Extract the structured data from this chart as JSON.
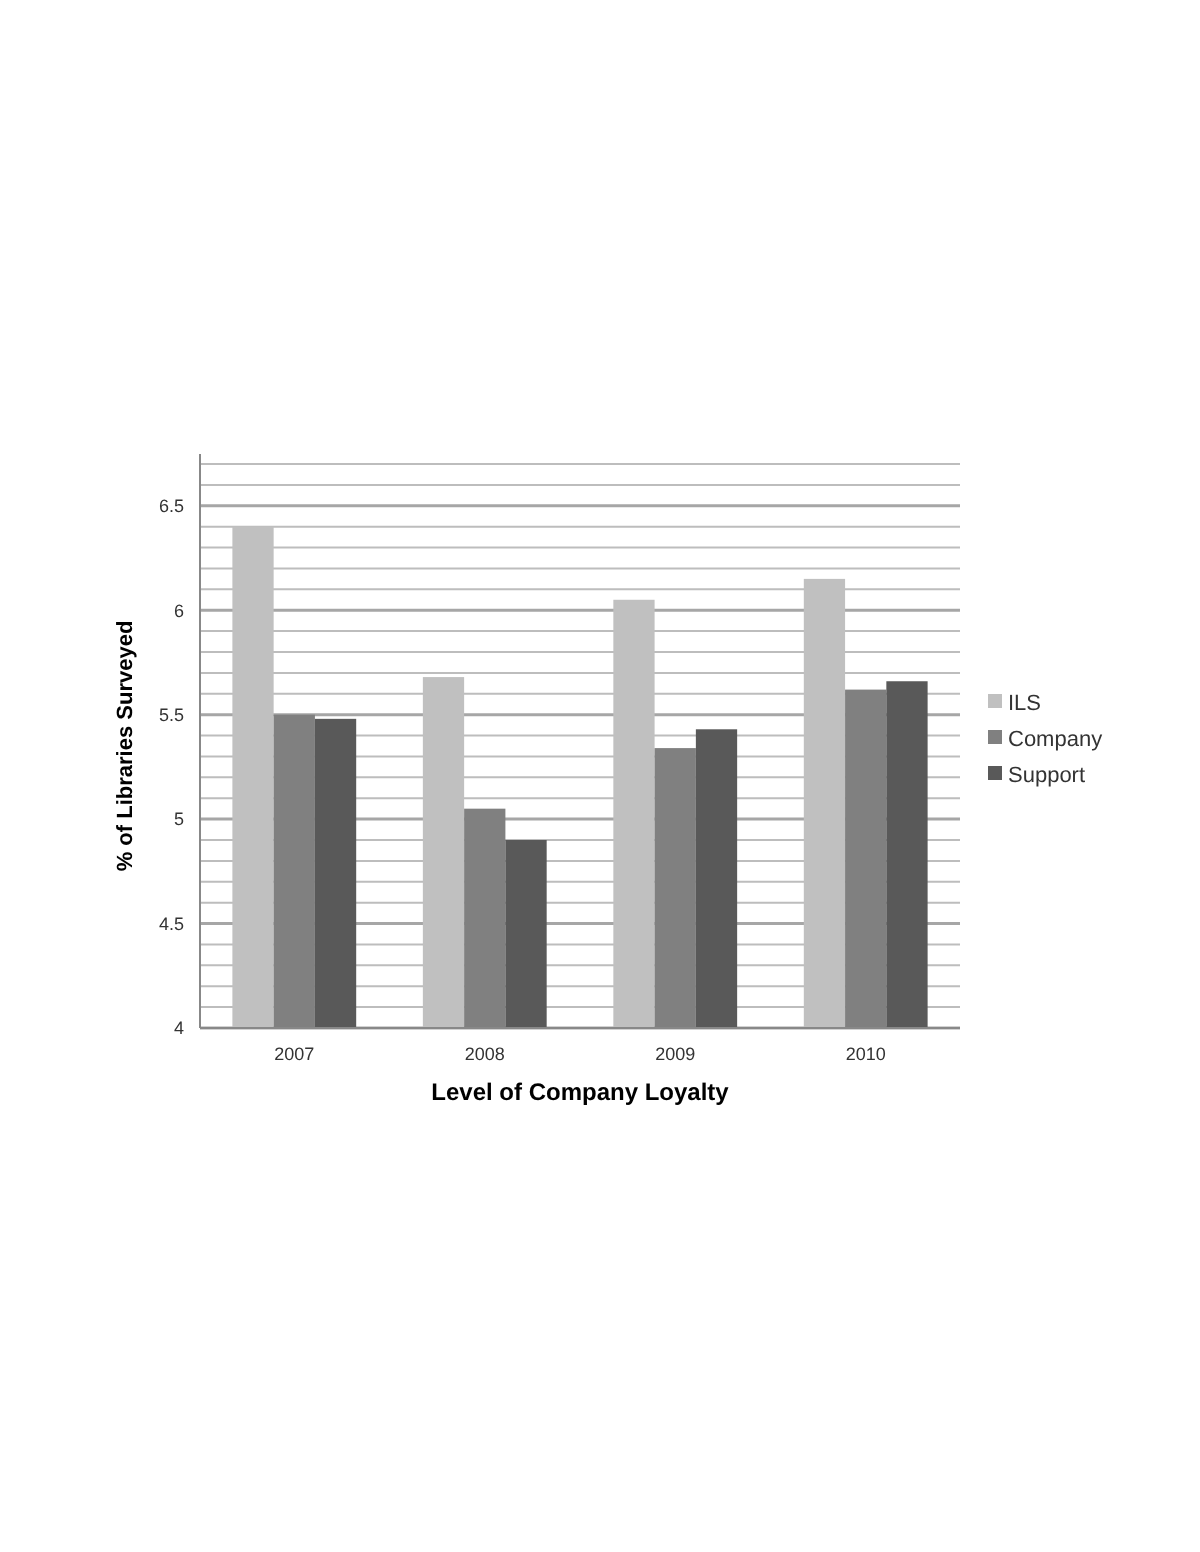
{
  "chart_data": {
    "type": "bar",
    "xlabel": "Level of Company Loyalty",
    "ylabel": "% of Libraries Surveyed",
    "categories": [
      "2007",
      "2008",
      "2009",
      "2010"
    ],
    "series": [
      {
        "name": "ILS",
        "color": "#c0c0c0",
        "values": [
          6.4,
          5.68,
          6.05,
          6.15
        ]
      },
      {
        "name": "Company",
        "color": "#808080",
        "values": [
          5.5,
          5.05,
          5.34,
          5.62
        ]
      },
      {
        "name": "Support",
        "color": "#595959",
        "values": [
          5.48,
          4.9,
          5.43,
          5.66
        ]
      }
    ],
    "ylim": [
      4,
      6.7
    ],
    "yticks": [
      4,
      {
        "value": 4.1,
        "label": null
      },
      {
        "value": 4.2,
        "label": null
      },
      {
        "value": 4.3,
        "label": null
      },
      {
        "value": 4.4,
        "label": null
      },
      4.5,
      {
        "value": 4.6,
        "label": null
      },
      {
        "value": 4.7,
        "label": null
      },
      {
        "value": 4.8,
        "label": null
      },
      {
        "value": 4.9,
        "label": null
      },
      5,
      {
        "value": 5.1,
        "label": null
      },
      {
        "value": 5.2,
        "label": null
      },
      {
        "value": 5.3,
        "label": null
      },
      {
        "value": 5.4,
        "label": null
      },
      5.5,
      {
        "value": 5.6,
        "label": null
      },
      {
        "value": 5.7,
        "label": null
      },
      {
        "value": 5.8,
        "label": null
      },
      {
        "value": 5.9,
        "label": null
      },
      6,
      {
        "value": 6.1,
        "label": null
      },
      {
        "value": 6.2,
        "label": null
      },
      {
        "value": 6.3,
        "label": null
      },
      {
        "value": 6.4,
        "label": null
      },
      6.5,
      {
        "value": 6.6,
        "label": null
      },
      {
        "value": 6.7,
        "label": null
      }
    ],
    "grid": true,
    "legend": "right"
  }
}
